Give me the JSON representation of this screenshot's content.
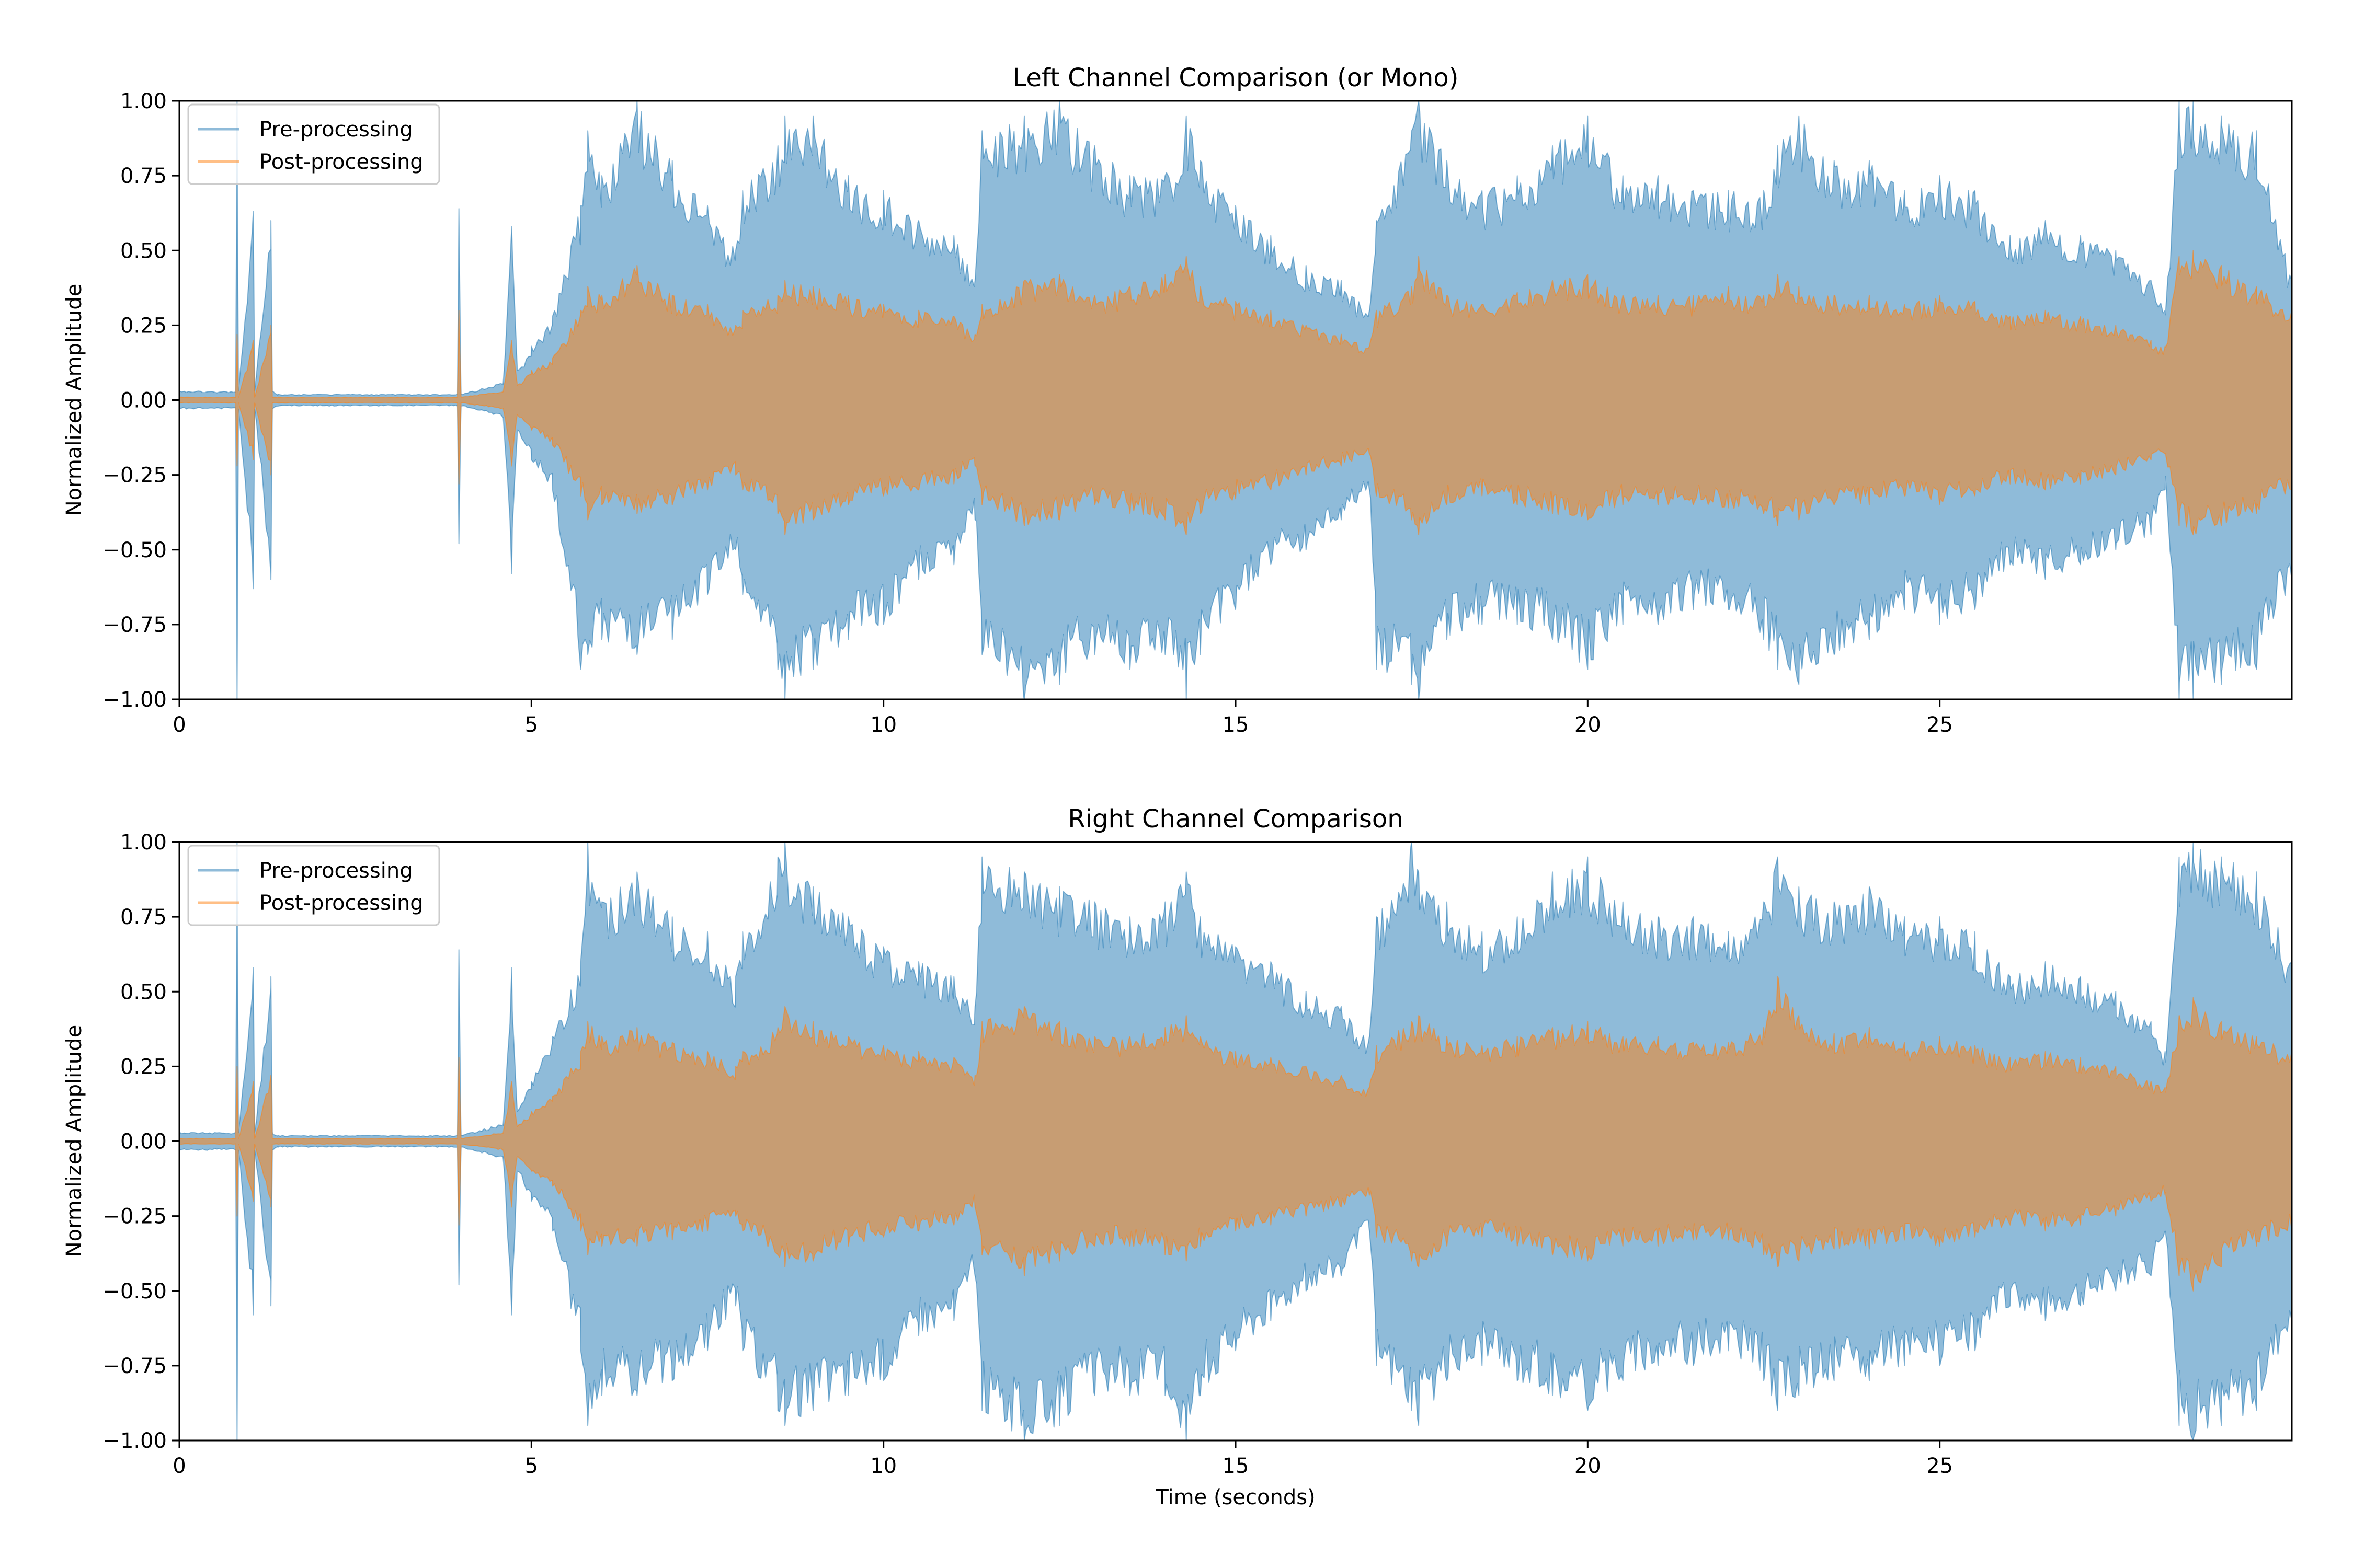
{
  "chart_data": [
    {
      "type": "line",
      "title": "Left Channel Comparison (or Mono)",
      "xlabel": "",
      "ylabel": "Normalized Amplitude",
      "xlim": [
        0,
        30
      ],
      "ylim": [
        -1.0,
        1.0
      ],
      "xticks": [
        0,
        5,
        10,
        15,
        20,
        25
      ],
      "xtick_labels": [
        "0",
        "5",
        "10",
        "15",
        "20",
        "25"
      ],
      "yticks": [
        -1.0,
        -0.75,
        -0.5,
        -0.25,
        0.0,
        0.25,
        0.5,
        0.75,
        1.0
      ],
      "ytick_labels": [
        "−1.00",
        "−0.75",
        "−0.50",
        "−0.25",
        "0.00",
        "0.25",
        "0.50",
        "0.75",
        "1.00"
      ],
      "grid": false,
      "legend_position": "top-left",
      "legend": [
        "Pre-processing",
        "Post-processing"
      ],
      "series": [
        {
          "name": "Pre-processing",
          "color": "#1f77b4",
          "opacity": 0.5,
          "envelope_time": [
            0,
            0.8,
            0.82,
            0.84,
            1.05,
            1.07,
            1.3,
            1.32,
            1.4,
            3.95,
            3.97,
            4.0,
            4.6,
            4.72,
            4.8,
            5.0,
            5.3,
            5.7,
            5.8,
            6.0,
            6.5,
            7.0,
            7.5,
            7.9,
            8.0,
            8.5,
            8.6,
            9.0,
            9.5,
            10.0,
            10.5,
            11.0,
            11.3,
            11.4,
            12.0,
            12.5,
            13.0,
            13.5,
            14.0,
            14.3,
            14.5,
            15.0,
            15.5,
            16.0,
            16.5,
            16.9,
            17.0,
            17.5,
            17.6,
            18.0,
            18.5,
            19.0,
            19.5,
            20.0,
            20.5,
            21.0,
            21.5,
            22.0,
            22.5,
            22.7,
            23.0,
            23.5,
            24.0,
            24.5,
            25.0,
            25.5,
            26.0,
            26.5,
            27.0,
            27.5,
            28.0,
            28.2,
            28.4,
            28.6,
            29.0,
            29.5,
            30.0
          ],
          "envelope_upper": [
            0.03,
            0.03,
            1.0,
            0.03,
            0.63,
            0.03,
            0.6,
            0.03,
            0.02,
            0.02,
            0.64,
            0.02,
            0.06,
            0.58,
            0.1,
            0.18,
            0.28,
            0.65,
            0.9,
            0.75,
            1.0,
            0.8,
            0.65,
            0.5,
            0.7,
            0.85,
            0.95,
            0.95,
            0.75,
            0.7,
            0.6,
            0.55,
            0.4,
            0.9,
            0.95,
            1.0,
            0.85,
            0.75,
            0.75,
            0.95,
            0.8,
            0.65,
            0.55,
            0.45,
            0.4,
            0.3,
            0.6,
            0.9,
            1.0,
            0.8,
            0.7,
            0.75,
            0.85,
            0.95,
            0.75,
            0.75,
            0.7,
            0.7,
            0.7,
            0.85,
            0.95,
            0.8,
            0.8,
            0.7,
            0.75,
            0.7,
            0.55,
            0.6,
            0.55,
            0.5,
            0.4,
            0.3,
            1.0,
            1.0,
            0.95,
            0.9,
            0.4
          ],
          "envelope_lower": [
            -0.03,
            -0.03,
            -1.0,
            -0.03,
            -0.63,
            -0.03,
            -0.6,
            -0.03,
            -0.02,
            -0.02,
            -0.48,
            -0.02,
            -0.06,
            -0.58,
            -0.1,
            -0.2,
            -0.3,
            -0.9,
            -0.85,
            -0.8,
            -0.85,
            -0.8,
            -0.65,
            -0.5,
            -0.65,
            -0.9,
            -1.0,
            -0.9,
            -0.8,
            -0.75,
            -0.6,
            -0.55,
            -0.4,
            -0.85,
            -1.0,
            -0.95,
            -0.85,
            -0.9,
            -0.85,
            -1.0,
            -0.85,
            -0.7,
            -0.55,
            -0.5,
            -0.4,
            -0.3,
            -0.9,
            -0.95,
            -1.0,
            -0.8,
            -0.75,
            -0.75,
            -0.8,
            -0.9,
            -0.75,
            -0.75,
            -0.7,
            -0.7,
            -0.8,
            -0.9,
            -0.95,
            -0.85,
            -0.8,
            -0.7,
            -0.75,
            -0.7,
            -0.55,
            -0.6,
            -0.55,
            -0.5,
            -0.45,
            -0.3,
            -1.0,
            -1.0,
            -0.95,
            -0.9,
            -0.6
          ]
        },
        {
          "name": "Post-processing",
          "color": "#ff7f0e",
          "opacity": 0.5,
          "envelope_time": [
            0,
            0.8,
            0.82,
            0.84,
            1.05,
            1.07,
            1.3,
            1.32,
            1.4,
            3.95,
            3.97,
            4.0,
            4.6,
            4.72,
            4.8,
            5.0,
            5.3,
            5.7,
            5.8,
            6.0,
            6.5,
            7.0,
            7.5,
            7.9,
            8.0,
            8.5,
            8.6,
            9.0,
            9.5,
            10.0,
            10.5,
            11.0,
            11.3,
            11.4,
            12.0,
            12.5,
            13.0,
            13.5,
            14.0,
            14.3,
            14.5,
            15.0,
            15.5,
            16.0,
            16.5,
            16.9,
            17.0,
            17.5,
            17.6,
            18.0,
            18.5,
            19.0,
            19.5,
            20.0,
            20.5,
            21.0,
            21.5,
            22.0,
            22.5,
            22.7,
            23.0,
            23.5,
            24.0,
            24.5,
            25.0,
            25.5,
            26.0,
            26.5,
            27.0,
            27.5,
            28.0,
            28.2,
            28.4,
            28.6,
            29.0,
            29.5,
            30.0
          ],
          "envelope_upper": [
            0.01,
            0.01,
            0.22,
            0.01,
            0.2,
            0.01,
            0.25,
            0.01,
            0.01,
            0.01,
            0.3,
            0.01,
            0.03,
            0.2,
            0.05,
            0.1,
            0.14,
            0.3,
            0.38,
            0.35,
            0.45,
            0.35,
            0.32,
            0.25,
            0.3,
            0.35,
            0.4,
            0.38,
            0.35,
            0.32,
            0.3,
            0.28,
            0.22,
            0.32,
            0.4,
            0.42,
            0.35,
            0.38,
            0.42,
            0.48,
            0.38,
            0.33,
            0.3,
            0.25,
            0.22,
            0.18,
            0.3,
            0.38,
            0.48,
            0.35,
            0.32,
            0.36,
            0.4,
            0.42,
            0.35,
            0.35,
            0.35,
            0.38,
            0.35,
            0.42,
            0.38,
            0.35,
            0.35,
            0.32,
            0.35,
            0.33,
            0.28,
            0.3,
            0.28,
            0.25,
            0.2,
            0.18,
            0.48,
            0.5,
            0.45,
            0.38,
            0.3
          ],
          "envelope_lower": [
            -0.01,
            -0.01,
            -0.22,
            -0.01,
            -0.2,
            -0.01,
            -0.25,
            -0.01,
            -0.01,
            -0.01,
            -0.28,
            -0.01,
            -0.03,
            -0.22,
            -0.05,
            -0.1,
            -0.15,
            -0.32,
            -0.4,
            -0.35,
            -0.38,
            -0.35,
            -0.3,
            -0.25,
            -0.3,
            -0.38,
            -0.45,
            -0.4,
            -0.35,
            -0.32,
            -0.3,
            -0.28,
            -0.22,
            -0.35,
            -0.42,
            -0.4,
            -0.35,
            -0.38,
            -0.4,
            -0.45,
            -0.38,
            -0.33,
            -0.3,
            -0.25,
            -0.22,
            -0.18,
            -0.32,
            -0.4,
            -0.45,
            -0.35,
            -0.32,
            -0.35,
            -0.38,
            -0.4,
            -0.35,
            -0.35,
            -0.35,
            -0.36,
            -0.38,
            -0.42,
            -0.4,
            -0.35,
            -0.35,
            -0.32,
            -0.35,
            -0.32,
            -0.28,
            -0.3,
            -0.28,
            -0.25,
            -0.2,
            -0.18,
            -0.42,
            -0.45,
            -0.42,
            -0.38,
            -0.3
          ]
        }
      ]
    },
    {
      "type": "line",
      "title": "Right Channel Comparison",
      "xlabel": "Time (seconds)",
      "ylabel": "Normalized Amplitude",
      "xlim": [
        0,
        30
      ],
      "ylim": [
        -1.0,
        1.0
      ],
      "xticks": [
        0,
        5,
        10,
        15,
        20,
        25
      ],
      "xtick_labels": [
        "0",
        "5",
        "10",
        "15",
        "20",
        "25"
      ],
      "yticks": [
        -1.0,
        -0.75,
        -0.5,
        -0.25,
        0.0,
        0.25,
        0.5,
        0.75,
        1.0
      ],
      "ytick_labels": [
        "−1.00",
        "−0.75",
        "−0.50",
        "−0.25",
        "0.00",
        "0.25",
        "0.50",
        "0.75",
        "1.00"
      ],
      "grid": false,
      "legend_position": "top-left",
      "legend": [
        "Pre-processing",
        "Post-processing"
      ],
      "series": [
        {
          "name": "Pre-processing",
          "color": "#1f77b4",
          "opacity": 0.5,
          "envelope_time": [
            0,
            0.8,
            0.82,
            0.84,
            1.05,
            1.07,
            1.3,
            1.32,
            1.4,
            3.95,
            3.97,
            4.0,
            4.6,
            4.72,
            4.8,
            5.0,
            5.3,
            5.7,
            5.8,
            6.0,
            6.5,
            7.0,
            7.5,
            7.9,
            8.0,
            8.5,
            8.6,
            9.0,
            9.5,
            10.0,
            10.5,
            11.0,
            11.3,
            11.4,
            12.0,
            12.5,
            13.0,
            13.5,
            14.0,
            14.3,
            14.5,
            15.0,
            15.5,
            16.0,
            16.5,
            16.9,
            17.0,
            17.5,
            17.6,
            18.0,
            18.5,
            19.0,
            19.5,
            20.0,
            20.5,
            21.0,
            21.5,
            22.0,
            22.5,
            22.7,
            23.0,
            23.5,
            24.0,
            24.5,
            25.0,
            25.5,
            26.0,
            26.5,
            27.0,
            27.5,
            28.0,
            28.2,
            28.4,
            28.6,
            29.0,
            29.5,
            30.0
          ],
          "envelope_upper": [
            0.03,
            0.03,
            1.0,
            0.03,
            0.58,
            0.03,
            0.55,
            0.03,
            0.02,
            0.02,
            0.64,
            0.02,
            0.06,
            0.58,
            0.1,
            0.2,
            0.35,
            0.6,
            1.0,
            0.8,
            0.9,
            0.75,
            0.7,
            0.55,
            0.7,
            0.95,
            1.0,
            0.85,
            0.75,
            0.65,
            0.6,
            0.55,
            0.45,
            0.95,
            0.9,
            0.85,
            0.8,
            0.75,
            0.8,
            0.9,
            0.75,
            0.65,
            0.6,
            0.5,
            0.45,
            0.35,
            0.75,
            1.0,
            0.9,
            0.8,
            0.7,
            0.75,
            0.9,
            0.95,
            0.8,
            0.75,
            0.75,
            0.7,
            0.8,
            0.95,
            0.85,
            0.8,
            0.85,
            0.75,
            0.75,
            0.7,
            0.55,
            0.6,
            0.55,
            0.5,
            0.4,
            0.3,
            0.95,
            1.0,
            0.95,
            0.9,
            0.6
          ],
          "envelope_lower": [
            -0.03,
            -0.03,
            -1.0,
            -0.03,
            -0.58,
            -0.03,
            -0.55,
            -0.03,
            -0.02,
            -0.02,
            -0.48,
            -0.02,
            -0.06,
            -0.58,
            -0.1,
            -0.2,
            -0.3,
            -0.7,
            -0.95,
            -0.85,
            -0.85,
            -0.8,
            -0.7,
            -0.55,
            -0.7,
            -0.9,
            -0.95,
            -0.9,
            -0.85,
            -0.8,
            -0.65,
            -0.6,
            -0.45,
            -0.9,
            -1.0,
            -0.95,
            -0.85,
            -0.85,
            -0.85,
            -1.0,
            -0.85,
            -0.7,
            -0.6,
            -0.5,
            -0.45,
            -0.3,
            -0.75,
            -0.9,
            -0.95,
            -0.8,
            -0.75,
            -0.8,
            -0.85,
            -0.9,
            -0.8,
            -0.75,
            -0.75,
            -0.7,
            -0.8,
            -0.9,
            -0.85,
            -0.8,
            -0.8,
            -0.75,
            -0.75,
            -0.7,
            -0.55,
            -0.6,
            -0.55,
            -0.5,
            -0.45,
            -0.3,
            -0.95,
            -1.0,
            -0.95,
            -0.9,
            -0.6
          ]
        },
        {
          "name": "Post-processing",
          "color": "#ff7f0e",
          "opacity": 0.5,
          "envelope_time": [
            0,
            0.8,
            0.82,
            0.84,
            1.05,
            1.07,
            1.3,
            1.32,
            1.4,
            3.95,
            3.97,
            4.0,
            4.6,
            4.72,
            4.8,
            5.0,
            5.3,
            5.7,
            5.8,
            6.0,
            6.5,
            7.0,
            7.5,
            7.9,
            8.0,
            8.5,
            8.6,
            9.0,
            9.5,
            10.0,
            10.5,
            11.0,
            11.3,
            11.4,
            12.0,
            12.5,
            13.0,
            13.5,
            14.0,
            14.3,
            14.5,
            15.0,
            15.5,
            16.0,
            16.5,
            16.9,
            17.0,
            17.5,
            17.6,
            18.0,
            18.5,
            19.0,
            19.5,
            20.0,
            20.5,
            21.0,
            21.5,
            22.0,
            22.5,
            22.7,
            23.0,
            23.5,
            24.0,
            24.5,
            25.0,
            25.5,
            26.0,
            26.5,
            27.0,
            27.5,
            28.0,
            28.2,
            28.4,
            28.6,
            29.0,
            29.5,
            30.0
          ],
          "envelope_upper": [
            0.01,
            0.01,
            0.25,
            0.01,
            0.2,
            0.01,
            0.22,
            0.01,
            0.01,
            0.01,
            0.28,
            0.01,
            0.03,
            0.2,
            0.05,
            0.1,
            0.15,
            0.3,
            0.4,
            0.35,
            0.38,
            0.33,
            0.3,
            0.25,
            0.3,
            0.38,
            0.45,
            0.4,
            0.35,
            0.32,
            0.3,
            0.28,
            0.22,
            0.4,
            0.45,
            0.4,
            0.35,
            0.35,
            0.38,
            0.42,
            0.35,
            0.3,
            0.28,
            0.25,
            0.22,
            0.18,
            0.32,
            0.4,
            0.42,
            0.35,
            0.32,
            0.35,
            0.38,
            0.4,
            0.35,
            0.35,
            0.33,
            0.33,
            0.38,
            0.55,
            0.42,
            0.36,
            0.38,
            0.33,
            0.35,
            0.32,
            0.28,
            0.3,
            0.28,
            0.25,
            0.2,
            0.18,
            0.42,
            0.48,
            0.4,
            0.35,
            0.3
          ],
          "envelope_lower": [
            -0.01,
            -0.01,
            -0.25,
            -0.01,
            -0.2,
            -0.01,
            -0.22,
            -0.01,
            -0.01,
            -0.01,
            -0.28,
            -0.01,
            -0.03,
            -0.22,
            -0.05,
            -0.1,
            -0.15,
            -0.3,
            -0.38,
            -0.35,
            -0.35,
            -0.33,
            -0.3,
            -0.25,
            -0.3,
            -0.38,
            -0.42,
            -0.4,
            -0.35,
            -0.32,
            -0.3,
            -0.28,
            -0.22,
            -0.38,
            -0.45,
            -0.4,
            -0.35,
            -0.35,
            -0.38,
            -0.4,
            -0.35,
            -0.3,
            -0.28,
            -0.25,
            -0.22,
            -0.18,
            -0.32,
            -0.4,
            -0.42,
            -0.35,
            -0.32,
            -0.35,
            -0.38,
            -0.4,
            -0.35,
            -0.35,
            -0.33,
            -0.33,
            -0.38,
            -0.42,
            -0.4,
            -0.36,
            -0.36,
            -0.33,
            -0.35,
            -0.32,
            -0.28,
            -0.3,
            -0.28,
            -0.25,
            -0.2,
            -0.18,
            -0.45,
            -0.5,
            -0.42,
            -0.35,
            -0.3
          ]
        }
      ]
    }
  ]
}
